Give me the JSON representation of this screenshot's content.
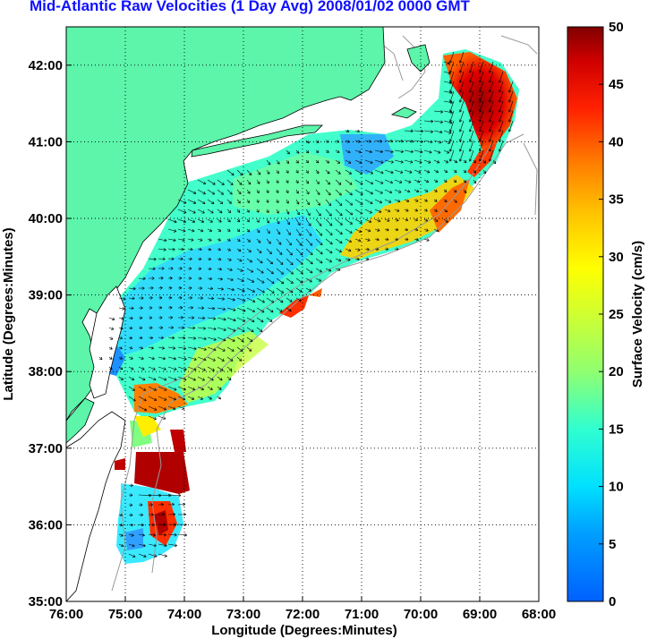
{
  "title": "Mid-Atlantic Raw Velocities (1 Day Avg) 2008/01/02 0000 GMT",
  "map": {
    "xlabel": "Longitude (Degrees:Minutes)",
    "ylabel": "Latitude (Degrees:Minutes)",
    "lon_range": [
      -76,
      -68
    ],
    "lat_range": [
      35,
      42.5
    ],
    "lon_ticks": [
      {
        "value": -76,
        "label": "76:00"
      },
      {
        "value": -75,
        "label": "75:00"
      },
      {
        "value": -74,
        "label": "74:00"
      },
      {
        "value": -73,
        "label": "73:00"
      },
      {
        "value": -72,
        "label": "72:00"
      },
      {
        "value": -71,
        "label": "71:00"
      },
      {
        "value": -70,
        "label": "70:00"
      },
      {
        "value": -69,
        "label": "69:00"
      },
      {
        "value": -68,
        "label": "68:00"
      }
    ],
    "lat_ticks": [
      {
        "value": 35,
        "label": "35:00"
      },
      {
        "value": 36,
        "label": "36:00"
      },
      {
        "value": 37,
        "label": "37:00"
      },
      {
        "value": 38,
        "label": "38:00"
      },
      {
        "value": 39,
        "label": "39:00"
      },
      {
        "value": 40,
        "label": "40:00"
      },
      {
        "value": 41,
        "label": "41:00"
      },
      {
        "value": 42,
        "label": "42:00"
      }
    ],
    "grid": "dotted",
    "land_color": "#5cf5aa",
    "coastline_color": "#000000",
    "bathymetry_color": "#999999"
  },
  "colorbar": {
    "label": "Surface Velocity (cm/s)",
    "range": [
      0,
      50
    ],
    "ticks": [
      "0",
      "5",
      "10",
      "15",
      "20",
      "25",
      "30",
      "35",
      "40",
      "45",
      "50"
    ],
    "colormap": "jet",
    "placement": "right"
  }
}
